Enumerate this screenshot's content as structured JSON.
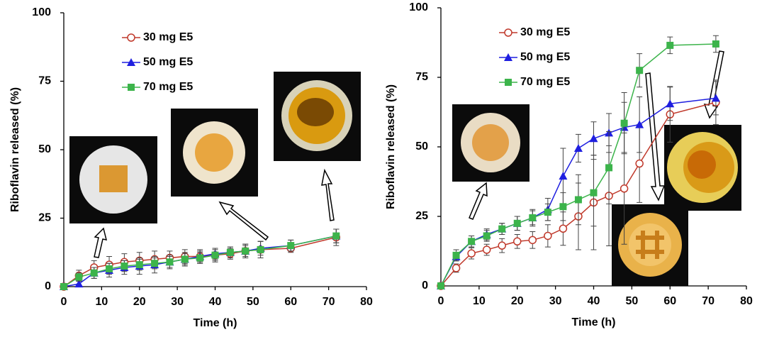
{
  "chart_data": [
    {
      "type": "line",
      "xlabel": "Time (h)",
      "ylabel": "Riboflavin released (%)",
      "x": [
        0,
        4,
        8,
        12,
        16,
        20,
        24,
        28,
        32,
        36,
        40,
        44,
        48,
        52,
        60,
        72
      ],
      "xlim": [
        0,
        80
      ],
      "ylim": [
        0,
        100
      ],
      "xticks": [
        0,
        10,
        20,
        30,
        40,
        50,
        60,
        70,
        80
      ],
      "yticks": [
        0,
        25,
        50,
        75,
        100
      ],
      "legend": "upper left",
      "series": [
        {
          "name": "30 mg E5",
          "color": "#c0392b",
          "marker": "open-circle",
          "values": [
            0,
            4,
            7,
            8,
            9,
            9.5,
            10,
            10.5,
            11,
            11,
            11.5,
            12,
            13,
            13.5,
            14,
            18
          ],
          "errors": [
            0,
            2,
            2.5,
            3,
            3,
            3,
            3,
            2.5,
            2.5,
            2.5,
            2.5,
            2,
            2.5,
            3,
            1.5,
            3
          ]
        },
        {
          "name": "50 mg E5",
          "color": "#1f1fe0",
          "marker": "triangle",
          "values": [
            0,
            1,
            5,
            6,
            7,
            7.5,
            8,
            9,
            10,
            11,
            12,
            12.5,
            13,
            14,
            15,
            18.5
          ],
          "errors": [
            0,
            1,
            2,
            2.5,
            2.5,
            3,
            3,
            2.5,
            2.5,
            2,
            2,
            2,
            2,
            2.5,
            2,
            2.5
          ]
        },
        {
          "name": "70 mg E5",
          "color": "#3cb44b",
          "marker": "square",
          "values": [
            0,
            3.5,
            5,
            6.5,
            7.5,
            8,
            8.5,
            9,
            10,
            10.5,
            11.5,
            12.5,
            13,
            13.5,
            15,
            18.5
          ],
          "errors": [
            0,
            1.5,
            2,
            2,
            2,
            2,
            2,
            2,
            2,
            2,
            2,
            2,
            2.5,
            3,
            2,
            2.5
          ]
        }
      ]
    },
    {
      "type": "line",
      "xlabel": "Time (h)",
      "ylabel": "Riboflavin  released (%)",
      "x": [
        0,
        4,
        8,
        12,
        16,
        20,
        24,
        28,
        32,
        36,
        40,
        44,
        48,
        52,
        60,
        72
      ],
      "xlim": [
        0,
        80
      ],
      "ylim": [
        0,
        100
      ],
      "xticks": [
        0,
        10,
        20,
        30,
        40,
        50,
        60,
        70,
        80
      ],
      "yticks": [
        0,
        25,
        50,
        75,
        100
      ],
      "legend": "upper left",
      "series": [
        {
          "name": "30 mg E5",
          "color": "#c0392b",
          "marker": "open-circle",
          "values": [
            0,
            6.4,
            11.7,
            13,
            14.5,
            16,
            16.5,
            18,
            20.6,
            25,
            30,
            32.4,
            35,
            44,
            61.7,
            66
          ],
          "errors": [
            0,
            1.5,
            2,
            2,
            2.5,
            2.5,
            3,
            4,
            6,
            12,
            17,
            18,
            20,
            14,
            10,
            8
          ]
        },
        {
          "name": "50 mg E5",
          "color": "#1f1fe0",
          "marker": "triangle",
          "values": [
            0,
            10.5,
            16,
            18.5,
            20.5,
            22.5,
            24.5,
            27.5,
            39.5,
            49.5,
            53,
            55,
            57,
            58,
            65.5,
            67.5
          ],
          "errors": [
            0,
            1.5,
            2,
            2,
            2,
            2.5,
            3,
            4,
            10,
            5,
            6,
            7,
            9,
            10,
            6,
            6
          ]
        },
        {
          "name": "70 mg E5",
          "color": "#3cb44b",
          "marker": "square",
          "values": [
            0,
            11,
            16,
            18,
            20.5,
            22.5,
            24.5,
            26.5,
            28.5,
            31,
            33.5,
            42.5,
            58.5,
            77.5,
            86.5,
            87
          ],
          "errors": [
            0,
            2,
            2,
            2,
            2,
            2.5,
            2.5,
            3,
            5,
            9,
            12,
            13,
            11,
            6,
            3,
            3
          ]
        }
      ]
    }
  ]
}
